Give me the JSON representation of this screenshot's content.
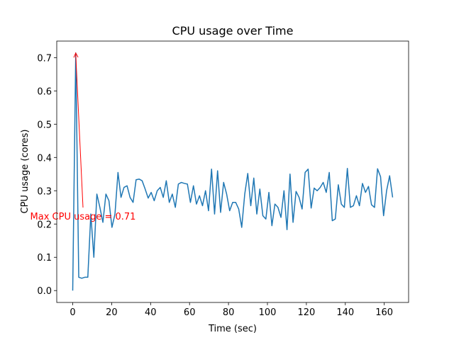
{
  "chart_data": {
    "type": "line",
    "title": "CPU usage over Time",
    "xlabel": "Time (sec)",
    "ylabel": "CPU usage (cores)",
    "annotation": "Max CPU usage = 0.71",
    "annotation_color": "#ff0000",
    "x": [
      0,
      1.55,
      3.1,
      4.65,
      6.2,
      7.75,
      9.3,
      10.85,
      12.4,
      13.95,
      15.5,
      17.05,
      18.6,
      20.15,
      21.7,
      23.25,
      24.8,
      26.35,
      27.9,
      29.45,
      31,
      32.55,
      34.1,
      35.65,
      37.2,
      38.75,
      40.3,
      41.85,
      43.4,
      44.95,
      46.5,
      48.05,
      49.6,
      51.15,
      52.7,
      54.25,
      55.8,
      57.35,
      58.9,
      60.45,
      62,
      63.55,
      65.1,
      66.65,
      68.2,
      69.75,
      71.3,
      72.85,
      74.4,
      75.95,
      77.5,
      79.05,
      80.6,
      82.15,
      83.7,
      85.25,
      86.8,
      88.35,
      89.9,
      91.45,
      93,
      94.55,
      96.1,
      97.65,
      99.2,
      100.75,
      102.3,
      103.85,
      105.4,
      106.95,
      108.5,
      110.05,
      111.6,
      113.15,
      114.7,
      116.25,
      117.8,
      119.35,
      120.9,
      122.45,
      124,
      125.55,
      127.1,
      128.65,
      130.2,
      131.75,
      133.3,
      134.85,
      136.4,
      137.95,
      139.5,
      141.05,
      142.6,
      144.15,
      145.7,
      147.25,
      148.8,
      150.35,
      151.9,
      153.45,
      155,
      156.55,
      158.1,
      159.65,
      161.2,
      162.75,
      164.3
    ],
    "series": [
      {
        "name": "CPU usage",
        "color": "#1f77b4",
        "values": [
          0,
          0.714,
          0.04,
          0.037,
          0.04,
          0.04,
          0.23,
          0.1,
          0.29,
          0.25,
          0.205,
          0.29,
          0.27,
          0.19,
          0.23,
          0.355,
          0.28,
          0.31,
          0.315,
          0.28,
          0.265,
          0.333,
          0.335,
          0.33,
          0.305,
          0.278,
          0.295,
          0.27,
          0.3,
          0.31,
          0.28,
          0.33,
          0.265,
          0.29,
          0.25,
          0.32,
          0.325,
          0.322,
          0.32,
          0.265,
          0.315,
          0.26,
          0.285,
          0.255,
          0.3,
          0.24,
          0.365,
          0.23,
          0.36,
          0.235,
          0.325,
          0.29,
          0.24,
          0.265,
          0.265,
          0.245,
          0.19,
          0.29,
          0.352,
          0.255,
          0.338,
          0.23,
          0.305,
          0.225,
          0.215,
          0.295,
          0.195,
          0.26,
          0.25,
          0.22,
          0.3,
          0.183,
          0.35,
          0.205,
          0.298,
          0.28,
          0.245,
          0.355,
          0.365,
          0.248,
          0.308,
          0.3,
          0.31,
          0.325,
          0.295,
          0.355,
          0.21,
          0.215,
          0.318,
          0.26,
          0.25,
          0.367,
          0.25,
          0.255,
          0.285,
          0.255,
          0.322,
          0.295,
          0.313,
          0.258,
          0.25,
          0.366,
          0.342,
          0.225,
          0.3,
          0.345,
          0.28
        ]
      }
    ],
    "xlim": [
      -8.2,
      172.5
    ],
    "ylim": [
      -0.0357,
      0.7497
    ],
    "xticks": [
      0,
      20,
      40,
      60,
      80,
      100,
      120,
      140,
      160
    ],
    "yticks": [
      {
        "value": 0,
        "label": "0.0"
      },
      0.1,
      0.2,
      0.3,
      0.4,
      0.5,
      0.6,
      0.7
    ]
  }
}
